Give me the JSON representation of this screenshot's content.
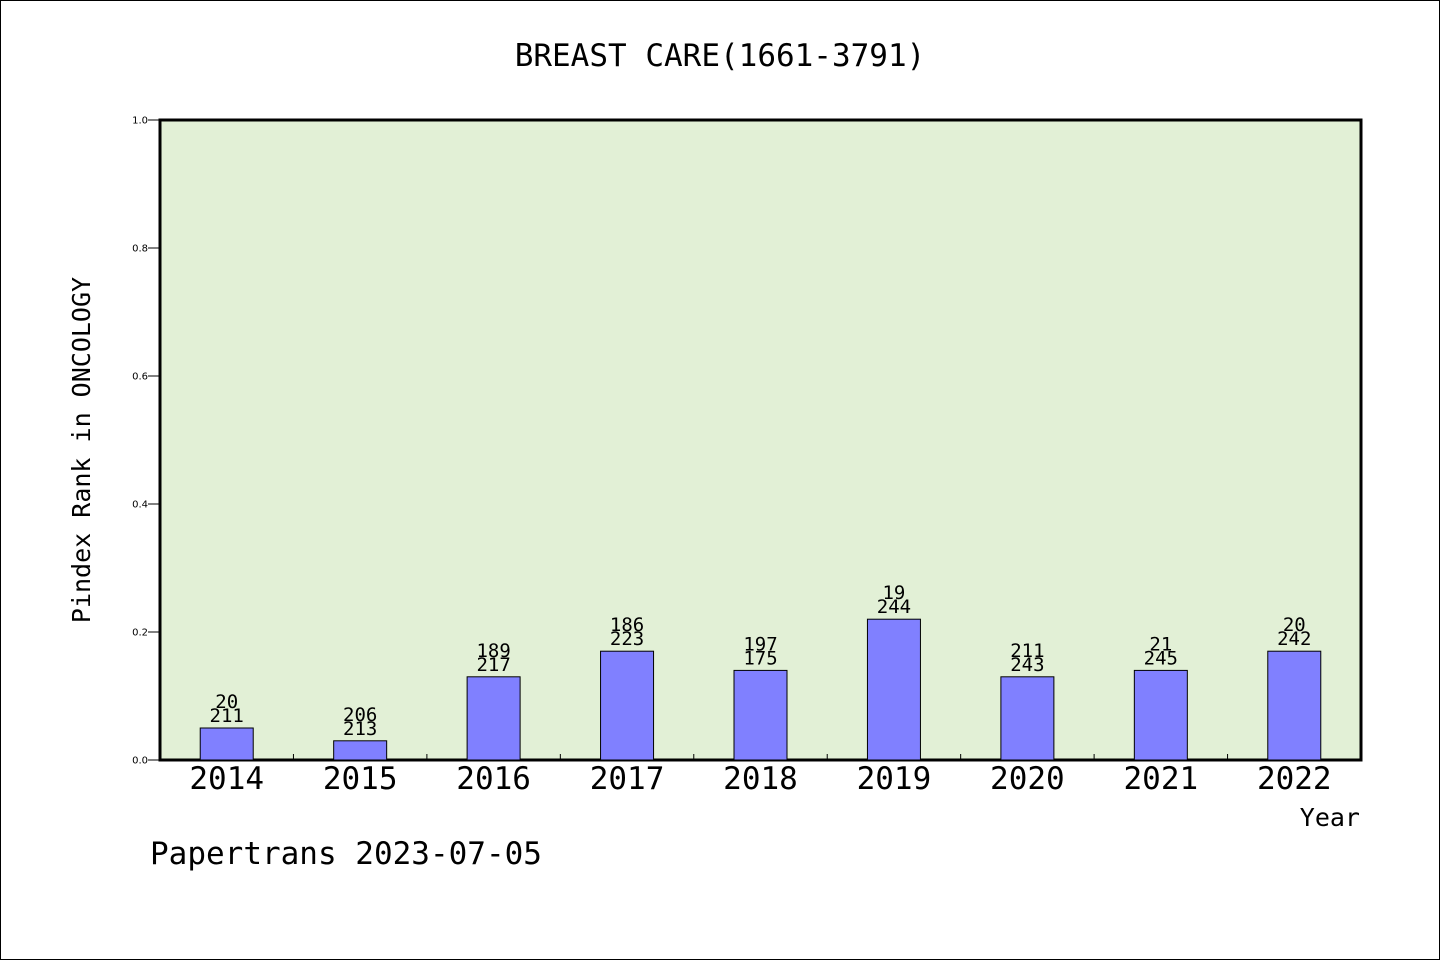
{
  "chart_data": {
    "type": "bar",
    "title": "BREAST CARE(1661-3791)",
    "xlabel": "Year",
    "ylabel": "Pindex Rank in ONCOLOGY",
    "footer": "Papertrans 2023-07-05",
    "ylim": [
      0.0,
      1.0
    ],
    "yticks": [
      "0.0",
      "0.2",
      "0.4",
      "0.6",
      "0.8",
      "1.0"
    ],
    "categories": [
      "2014",
      "2015",
      "2016",
      "2017",
      "2018",
      "2019",
      "2020",
      "2021",
      "2022"
    ],
    "values": [
      0.05,
      0.03,
      0.13,
      0.17,
      0.14,
      0.22,
      0.13,
      0.14,
      0.17
    ],
    "labels_top": [
      "20",
      "206",
      "189",
      "186",
      "197",
      "19",
      "211",
      "21",
      "20"
    ],
    "labels_bottom": [
      "211",
      "213",
      "217",
      "223",
      "175",
      "244",
      "243",
      "245",
      "242"
    ],
    "colors": {
      "plot_bg": "#e2f0d6",
      "bar": "#8080ff",
      "axis": "#000000"
    }
  }
}
